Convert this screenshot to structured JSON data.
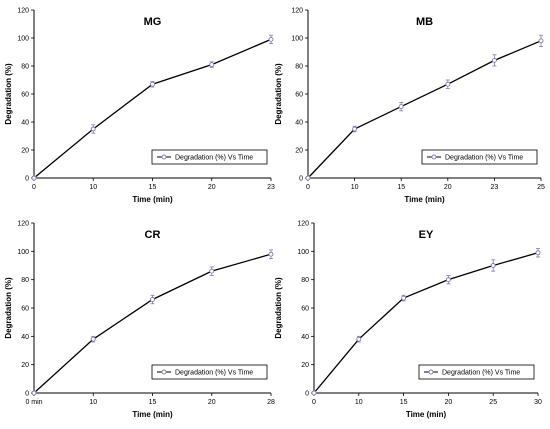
{
  "chart_data": [
    {
      "type": "line",
      "title": "MG",
      "xlabel": "Time (min)",
      "ylabel": "Degradation (%)",
      "x_tick_labels": [
        "0",
        "10",
        "15",
        "20",
        "23"
      ],
      "values": [
        0,
        35,
        67,
        81,
        99
      ],
      "errors": [
        1,
        3,
        2,
        2,
        3
      ],
      "ylim": [
        0,
        120
      ],
      "yticks": [
        "0",
        "20",
        "40",
        "60",
        "80",
        "100",
        "120"
      ],
      "grid": false,
      "legend": "Degradation (%) Vs Time",
      "legend_position": "bottom-right",
      "line_color": "#000000",
      "marker_color": "#7b7bb0"
    },
    {
      "type": "line",
      "title": "MB",
      "xlabel": "Time (min)",
      "ylabel": "Degradation (%)",
      "x_tick_labels": [
        "0",
        "10",
        "15",
        "20",
        "23",
        "25"
      ],
      "values": [
        0,
        35,
        51,
        67,
        84,
        98
      ],
      "errors": [
        1,
        2,
        3,
        3,
        4,
        4
      ],
      "ylim": [
        0,
        120
      ],
      "yticks": [
        "0",
        "20",
        "40",
        "60",
        "80",
        "100",
        "120"
      ],
      "grid": false,
      "legend": "Degradation (%) Vs Time",
      "legend_position": "bottom-right",
      "line_color": "#000000",
      "marker_color": "#7b7bb0"
    },
    {
      "type": "line",
      "title": "CR",
      "xlabel": "Time (min)",
      "ylabel": "Degradation (%)",
      "x_tick_labels": [
        "0 min",
        "10",
        "15",
        "20",
        "28"
      ],
      "values": [
        0,
        38,
        66,
        86,
        98
      ],
      "errors": [
        1,
        2,
        3,
        3,
        3
      ],
      "ylim": [
        0,
        120
      ],
      "yticks": [
        "0",
        "20",
        "40",
        "60",
        "80",
        "100",
        "120"
      ],
      "grid": false,
      "legend": "Degradation (%) Vs Time",
      "legend_position": "bottom-right",
      "line_color": "#000000",
      "marker_color": "#7b7bb0"
    },
    {
      "type": "line",
      "title": "EY",
      "xlabel": "Time (min)",
      "ylabel": "Degradation (%)",
      "x_tick_labels": [
        "0",
        "10",
        "15",
        "20",
        "25",
        "30"
      ],
      "values": [
        0,
        38,
        67,
        80,
        90,
        99
      ],
      "errors": [
        1,
        2,
        2,
        3,
        4,
        3
      ],
      "ylim": [
        0,
        120
      ],
      "yticks": [
        "0",
        "20",
        "40",
        "60",
        "80",
        "100",
        "120"
      ],
      "grid": false,
      "legend": "Degradation (%) Vs Time",
      "legend_position": "bottom-right",
      "line_color": "#000000",
      "marker_color": "#7b7bb0"
    }
  ]
}
